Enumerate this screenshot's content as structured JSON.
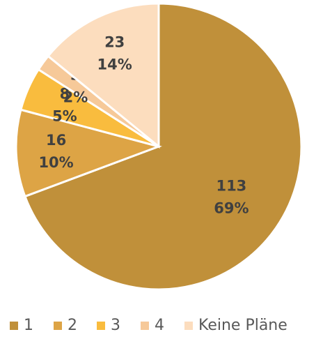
{
  "chart_data": {
    "type": "pie",
    "categories": [
      "1",
      "2",
      "3",
      "4",
      "Keine Pläne"
    ],
    "values": [
      113,
      16,
      8,
      3,
      23
    ],
    "percent_labels": [
      "69%",
      "10%",
      "5%",
      "2%",
      "14%"
    ],
    "colors": [
      "#C0903A",
      "#DDA445",
      "#F9BC3E",
      "#F6C999",
      "#FCDDBE"
    ],
    "legend": "bottom"
  }
}
